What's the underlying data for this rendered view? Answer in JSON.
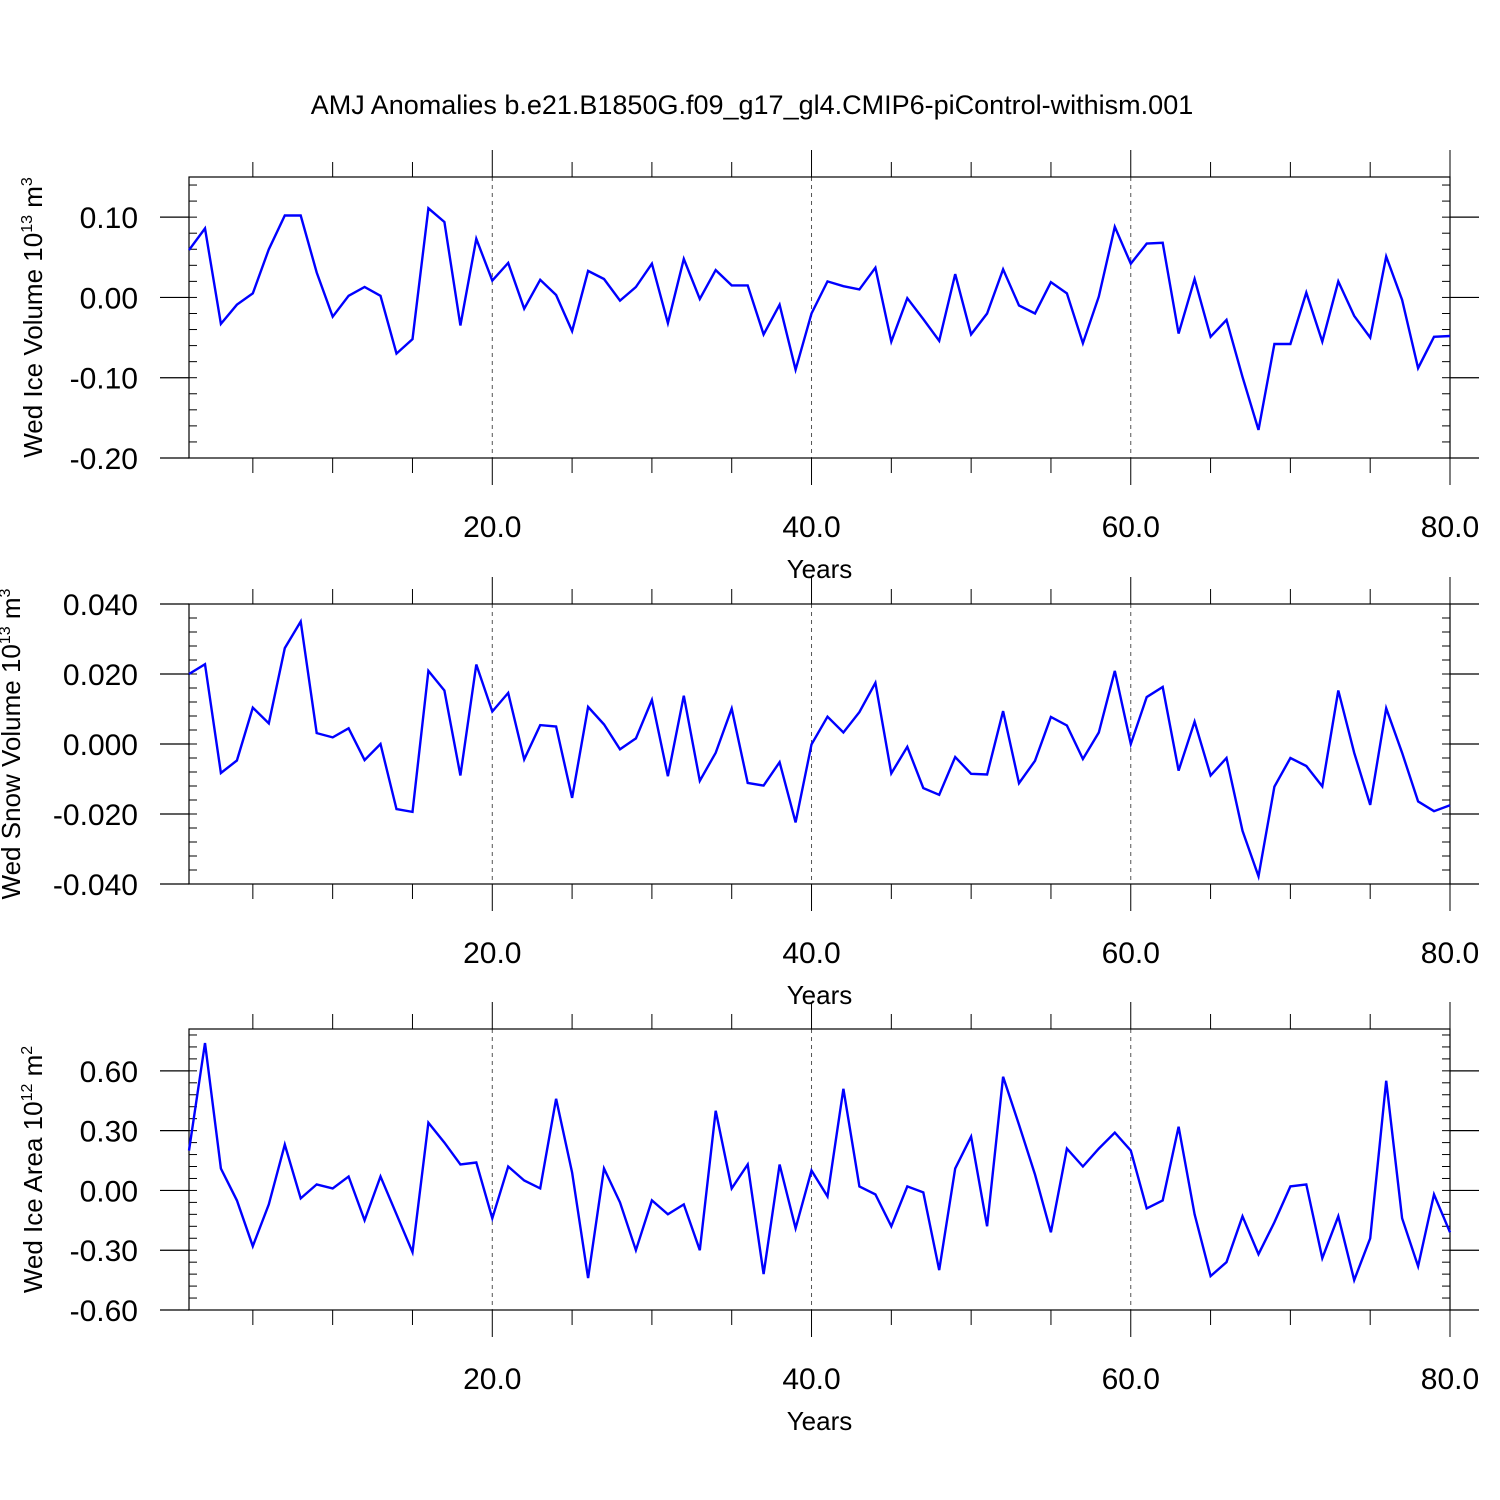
{
  "title": "AMJ Anomalies b.e21.B1850G.f09_g17_gl4.CMIP6-piControl-withism.001",
  "colors": {
    "line": "#0000ff",
    "axis": "#000000",
    "grid": "#555555"
  },
  "chart_data": [
    {
      "type": "line",
      "ylabel": {
        "base": "Wed Ice Volume 10",
        "exp": "13",
        "unit": " m",
        "unit_exp": "3"
      },
      "xlabel": "Years",
      "xlim": [
        1,
        80
      ],
      "ylim": [
        -0.2,
        0.15
      ],
      "xticks": [
        20,
        40,
        60,
        80
      ],
      "xtick_labels": [
        "20.0",
        "40.0",
        "60.0",
        "80.0"
      ],
      "yticks": [
        -0.2,
        -0.1,
        0.0,
        0.1
      ],
      "ytick_labels": [
        "-0.20",
        "-0.10",
        "0.00",
        "0.10"
      ],
      "y_minor_step": 0.02,
      "grid": "vertical dashed at major x ticks",
      "series": [
        {
          "x": [
            1,
            2,
            3,
            4,
            5,
            6,
            7,
            8,
            9,
            10,
            11,
            12,
            13,
            14,
            15,
            16,
            17,
            18,
            19,
            20,
            21,
            22,
            23,
            24,
            25,
            26,
            27,
            28,
            29,
            30,
            31,
            32,
            33,
            34,
            35,
            36,
            37,
            38,
            39,
            40,
            41,
            42,
            43,
            44,
            45,
            46,
            47,
            48,
            49,
            50,
            51,
            52,
            53,
            54,
            55,
            56,
            57,
            58,
            59,
            60,
            61,
            62,
            63,
            64,
            65,
            66,
            67,
            68,
            69,
            70,
            71,
            72,
            73,
            74,
            75,
            76,
            77,
            78,
            79,
            80
          ],
          "y": [
            0.059,
            0.086,
            -0.033,
            -0.009,
            0.005,
            0.06,
            0.102,
            0.102,
            0.031,
            -0.024,
            0.002,
            0.013,
            0.002,
            -0.07,
            -0.052,
            0.111,
            0.094,
            -0.035,
            0.073,
            0.021,
            0.043,
            -0.014,
            0.022,
            0.003,
            -0.042,
            0.033,
            0.023,
            -0.004,
            0.013,
            0.042,
            -0.032,
            0.048,
            -0.002,
            0.034,
            0.015,
            0.015,
            -0.046,
            -0.009,
            -0.09,
            -0.02,
            0.02,
            0.014,
            0.01,
            0.037,
            -0.055,
            -0.001,
            -0.027,
            -0.054,
            0.029,
            -0.046,
            -0.02,
            0.035,
            -0.01,
            -0.02,
            0.019,
            0.005,
            -0.057,
            0.001,
            0.088,
            0.042,
            0.067,
            0.068,
            -0.045,
            0.023,
            -0.049,
            -0.028,
            -0.099,
            -0.165,
            -0.058,
            -0.058,
            0.006,
            -0.055,
            0.02,
            -0.023,
            -0.05,
            0.051,
            -0.003,
            -0.088,
            -0.049,
            -0.048
          ]
        }
      ]
    },
    {
      "type": "line",
      "ylabel": {
        "base": "Wed Snow Volume 10",
        "exp": "13",
        "unit": " m",
        "unit_exp": "3"
      },
      "xlabel": "Years",
      "xlim": [
        1,
        80
      ],
      "ylim": [
        -0.04,
        0.04
      ],
      "xticks": [
        20,
        40,
        60,
        80
      ],
      "xtick_labels": [
        "20.0",
        "40.0",
        "60.0",
        "80.0"
      ],
      "yticks": [
        -0.04,
        -0.02,
        0.0,
        0.02,
        0.04
      ],
      "ytick_labels": [
        "-0.040",
        "-0.020",
        "0.000",
        "0.020",
        "0.040"
      ],
      "y_minor_step": 0.004,
      "grid": "vertical dashed at major x ticks",
      "series": [
        {
          "x": [
            1,
            2,
            3,
            4,
            5,
            6,
            7,
            8,
            9,
            10,
            11,
            12,
            13,
            14,
            15,
            16,
            17,
            18,
            19,
            20,
            21,
            22,
            23,
            24,
            25,
            26,
            27,
            28,
            29,
            30,
            31,
            32,
            33,
            34,
            35,
            36,
            37,
            38,
            39,
            40,
            41,
            42,
            43,
            44,
            45,
            46,
            47,
            48,
            49,
            50,
            51,
            52,
            53,
            54,
            55,
            56,
            57,
            58,
            59,
            60,
            61,
            62,
            63,
            64,
            65,
            66,
            67,
            68,
            69,
            70,
            71,
            72,
            73,
            74,
            75,
            76,
            77,
            78,
            79,
            80
          ],
          "y": [
            0.02,
            0.0228,
            -0.0083,
            -0.0047,
            0.0104,
            0.0059,
            0.0274,
            0.035,
            0.0031,
            0.0019,
            0.0045,
            -0.0046,
            0.0,
            -0.0186,
            -0.0194,
            0.0209,
            0.0153,
            -0.009,
            0.0227,
            0.0093,
            0.0146,
            -0.0044,
            0.0054,
            0.005,
            -0.0154,
            0.0106,
            0.0056,
            -0.0015,
            0.0016,
            0.0126,
            -0.0092,
            0.0138,
            -0.0105,
            -0.0025,
            0.0101,
            -0.0111,
            -0.0119,
            -0.0052,
            -0.0224,
            -0.0001,
            0.0078,
            0.0033,
            0.0091,
            0.0175,
            -0.0084,
            -0.0008,
            -0.0126,
            -0.0145,
            -0.0037,
            -0.0085,
            -0.0087,
            0.0094,
            -0.0112,
            -0.0048,
            0.0077,
            0.0053,
            -0.0043,
            0.0033,
            0.0209,
            0.0,
            0.0134,
            0.0163,
            -0.0076,
            0.0064,
            -0.009,
            -0.004,
            -0.0248,
            -0.0378,
            -0.0122,
            -0.004,
            -0.0063,
            -0.0121,
            0.0153,
            -0.0025,
            -0.0174,
            0.0102,
            -0.0025,
            -0.0164,
            -0.0192,
            -0.0175
          ]
        }
      ]
    },
    {
      "type": "line",
      "ylabel": {
        "base": "Wed Ice Area 10",
        "exp": "12",
        "unit": " m",
        "unit_exp": "2"
      },
      "xlabel": "Years",
      "xlim": [
        1,
        80
      ],
      "ylim": [
        -0.6,
        0.81
      ],
      "xticks": [
        20,
        40,
        60,
        80
      ],
      "xtick_labels": [
        "20.0",
        "40.0",
        "60.0",
        "80.0"
      ],
      "yticks": [
        -0.6,
        -0.3,
        0.0,
        0.3,
        0.6
      ],
      "ytick_labels": [
        "-0.60",
        "-0.30",
        "0.00",
        "0.30",
        "0.60"
      ],
      "y_minor_step": 0.06,
      "grid": "vertical dashed at major x ticks",
      "series": [
        {
          "x": [
            1,
            2,
            3,
            4,
            5,
            6,
            7,
            8,
            9,
            10,
            11,
            12,
            13,
            14,
            15,
            16,
            17,
            18,
            19,
            20,
            21,
            22,
            23,
            24,
            25,
            26,
            27,
            28,
            29,
            30,
            31,
            32,
            33,
            34,
            35,
            36,
            37,
            38,
            39,
            40,
            41,
            42,
            43,
            44,
            45,
            46,
            47,
            48,
            49,
            50,
            51,
            52,
            53,
            54,
            55,
            56,
            57,
            58,
            59,
            60,
            61,
            62,
            63,
            64,
            65,
            66,
            67,
            68,
            69,
            70,
            71,
            72,
            73,
            74,
            75,
            76,
            77,
            78,
            79,
            80
          ],
          "y": [
            0.2,
            0.74,
            0.11,
            -0.05,
            -0.28,
            -0.07,
            0.23,
            -0.04,
            0.03,
            0.01,
            0.07,
            -0.15,
            0.07,
            -0.12,
            -0.31,
            0.34,
            0.24,
            0.13,
            0.14,
            -0.14,
            0.12,
            0.05,
            0.01,
            0.46,
            0.09,
            -0.44,
            0.11,
            -0.06,
            -0.3,
            -0.05,
            -0.12,
            -0.07,
            -0.3,
            0.4,
            0.01,
            0.13,
            -0.42,
            0.13,
            -0.19,
            0.1,
            -0.03,
            0.51,
            0.02,
            -0.02,
            -0.18,
            0.02,
            -0.01,
            -0.4,
            0.11,
            0.27,
            -0.18,
            0.57,
            0.33,
            0.08,
            -0.21,
            0.21,
            0.12,
            0.21,
            0.29,
            0.2,
            -0.09,
            -0.05,
            0.32,
            -0.12,
            -0.43,
            -0.36,
            -0.13,
            -0.32,
            -0.16,
            0.02,
            0.03,
            -0.34,
            -0.13,
            -0.45,
            -0.24,
            0.55,
            -0.14,
            -0.38,
            -0.02,
            -0.21
          ]
        }
      ]
    }
  ]
}
